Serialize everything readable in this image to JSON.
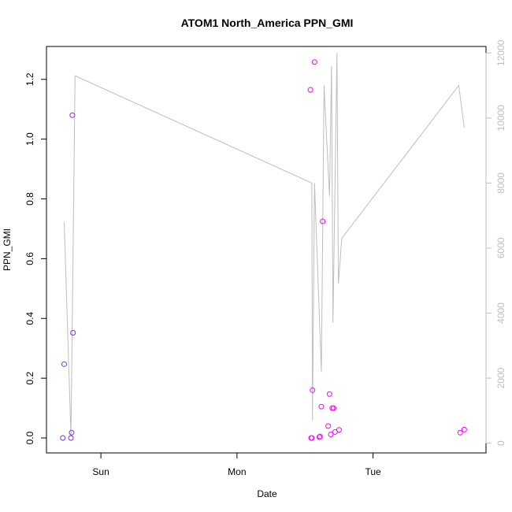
{
  "chart_data": {
    "type": "scatter",
    "title": "ATOM1 North_America PPN_GMI",
    "xlabel": "Date",
    "ylabel": "PPN_GMI",
    "x_ticks": [
      {
        "value": 1.0,
        "label": "Sun"
      },
      {
        "value": 2.0,
        "label": "Mon"
      },
      {
        "value": 3.0,
        "label": "Tue"
      }
    ],
    "xlim": [
      0.6,
      3.83
    ],
    "ylim": [
      -0.05,
      1.31
    ],
    "y_ticks": [
      0.0,
      0.2,
      0.4,
      0.6,
      0.8,
      1.0,
      1.2
    ],
    "y2lim": [
      -300,
      12200
    ],
    "y2_ticks": [
      0,
      2000,
      4000,
      6000,
      8000,
      10000,
      12000
    ],
    "colors": {
      "series_points_early": "#8a2be2",
      "series_points_late": "#ff00ff",
      "line": "#bebebe",
      "axis": "#000000",
      "right_axis": "#bebebe"
    },
    "series": [
      {
        "axis": "left",
        "style": "points",
        "values": [
          {
            "x": 0.72,
            "y": 0.0,
            "color": "#8a2be2"
          },
          {
            "x": 0.73,
            "y": 0.247,
            "color": "#8a2be2"
          },
          {
            "x": 0.78,
            "y": 0.0,
            "color": "#8a2be2"
          },
          {
            "x": 0.785,
            "y": 0.018,
            "color": "#8a2be2"
          },
          {
            "x": 0.79,
            "y": 1.08,
            "color": "#8a2be2"
          },
          {
            "x": 0.795,
            "y": 0.352,
            "color": "#8a2be2"
          },
          {
            "x": 2.54,
            "y": 1.165,
            "color": "#ff00ff"
          },
          {
            "x": 2.545,
            "y": 0.0,
            "color": "#ff00ff"
          },
          {
            "x": 2.55,
            "y": 0.0,
            "color": "#ff00ff"
          },
          {
            "x": 2.555,
            "y": 0.16,
            "color": "#ff00ff"
          },
          {
            "x": 2.57,
            "y": 1.258,
            "color": "#ff00ff"
          },
          {
            "x": 2.605,
            "y": 0.003,
            "color": "#ff00ff"
          },
          {
            "x": 2.61,
            "y": 0.005,
            "color": "#ff00ff"
          },
          {
            "x": 2.62,
            "y": 0.105,
            "color": "#ff00ff"
          },
          {
            "x": 2.63,
            "y": 0.725,
            "color": "#ff00ff"
          },
          {
            "x": 2.67,
            "y": 0.04,
            "color": "#ff00ff"
          },
          {
            "x": 2.68,
            "y": 0.147,
            "color": "#ff00ff"
          },
          {
            "x": 2.69,
            "y": 0.012,
            "color": "#ff00ff"
          },
          {
            "x": 2.7,
            "y": 0.1,
            "color": "#ff00ff"
          },
          {
            "x": 2.71,
            "y": 0.1,
            "color": "#ff00ff"
          },
          {
            "x": 2.72,
            "y": 0.02,
            "color": "#ff00ff"
          },
          {
            "x": 2.75,
            "y": 0.027,
            "color": "#ff00ff"
          },
          {
            "x": 3.64,
            "y": 0.018,
            "color": "#ff00ff"
          },
          {
            "x": 3.67,
            "y": 0.028,
            "color": "#ff00ff"
          }
        ]
      },
      {
        "axis": "right",
        "style": "line",
        "values": [
          {
            "x": 0.73,
            "y": 6800
          },
          {
            "x": 0.78,
            "y": 200
          },
          {
            "x": 0.81,
            "y": 11300
          },
          {
            "x": 2.55,
            "y": 8000
          },
          {
            "x": 2.555,
            "y": 700
          },
          {
            "x": 2.57,
            "y": 8000
          },
          {
            "x": 2.62,
            "y": 2200
          },
          {
            "x": 2.64,
            "y": 11000
          },
          {
            "x": 2.68,
            "y": 7600
          },
          {
            "x": 2.695,
            "y": 11600
          },
          {
            "x": 2.705,
            "y": 3700
          },
          {
            "x": 2.735,
            "y": 12000
          },
          {
            "x": 2.745,
            "y": 4900
          },
          {
            "x": 2.77,
            "y": 6300
          },
          {
            "x": 3.63,
            "y": 11000
          },
          {
            "x": 3.67,
            "y": 9700
          }
        ]
      }
    ]
  }
}
